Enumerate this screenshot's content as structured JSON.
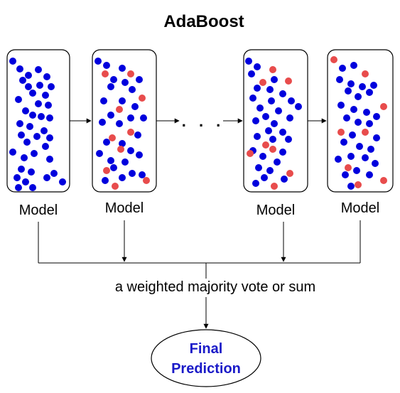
{
  "title": "AdaBoost",
  "models": [
    {
      "label": "Model"
    },
    {
      "label": "Model"
    },
    {
      "label": "Model"
    },
    {
      "label": "Model"
    }
  ],
  "ellipsis": ". . .",
  "aggregation_label": "a weighted majority vote or sum",
  "final": {
    "line1": "Final",
    "line2": "Prediction"
  },
  "colors": {
    "correct": "#0000dd",
    "misclassified": "#e84c4c",
    "final_text": "#1a1ac8"
  }
}
